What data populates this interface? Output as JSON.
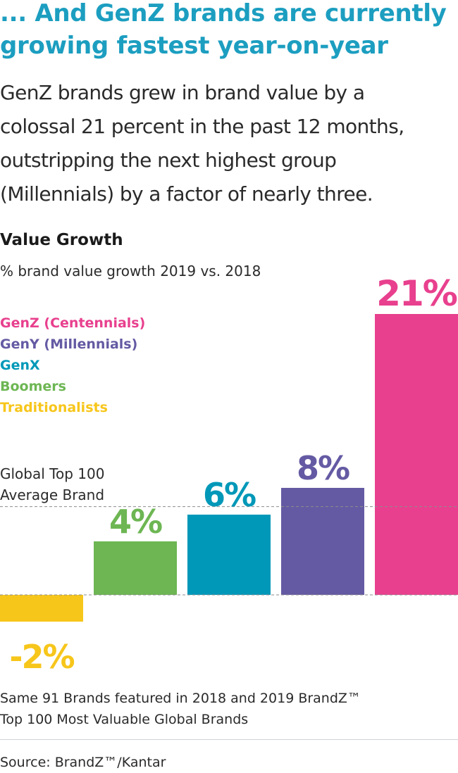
{
  "header": {
    "title_line1": "... And GenZ brands are currently",
    "title_line2": "growing fastest year-on-year",
    "intro_lines": [
      "GenZ brands grew in brand value by a",
      "colossal 21 percent in the past 12 months,",
      "outstripping the next highest group",
      "(Millennials) by a factor of nearly three."
    ]
  },
  "chart_data": {
    "type": "bar",
    "title": "Value Growth",
    "subtitle": "% brand value growth 2019 vs. 2018",
    "categories": [
      "Traditionalists",
      "Boomers",
      "GenX",
      "GenY (Millennials)",
      "GenZ (Centennials)"
    ],
    "values": [
      -2,
      4,
      6,
      8,
      21
    ],
    "data_labels": [
      "-2%",
      "4%",
      "6%",
      "8%",
      "21%"
    ],
    "colors": [
      "#f7c61b",
      "#6db653",
      "#0098b8",
      "#645aa3",
      "#e8408e"
    ],
    "legend": [
      {
        "label": "GenZ (Centennials)",
        "color": "#e8408e"
      },
      {
        "label": "GenY (Millennials)",
        "color": "#645aa3"
      },
      {
        "label": "GenX",
        "color": "#0098b8"
      },
      {
        "label": "Boomers",
        "color": "#6db653"
      },
      {
        "label": "Traditionalists",
        "color": "#f7c61b"
      }
    ],
    "legend_position": "top-left",
    "reference_line": {
      "value": 6.6,
      "label_line1": "Global Top 100",
      "label_line2": "Average Brand"
    },
    "ylim": [
      -2,
      21
    ],
    "grid": false
  },
  "footer": {
    "note_line1": "Same 91 Brands featured in 2018 and 2019 BrandZ™",
    "note_line2": "Top 100 Most Valuable Global Brands",
    "source": "Source: BrandZ™/Kantar"
  }
}
